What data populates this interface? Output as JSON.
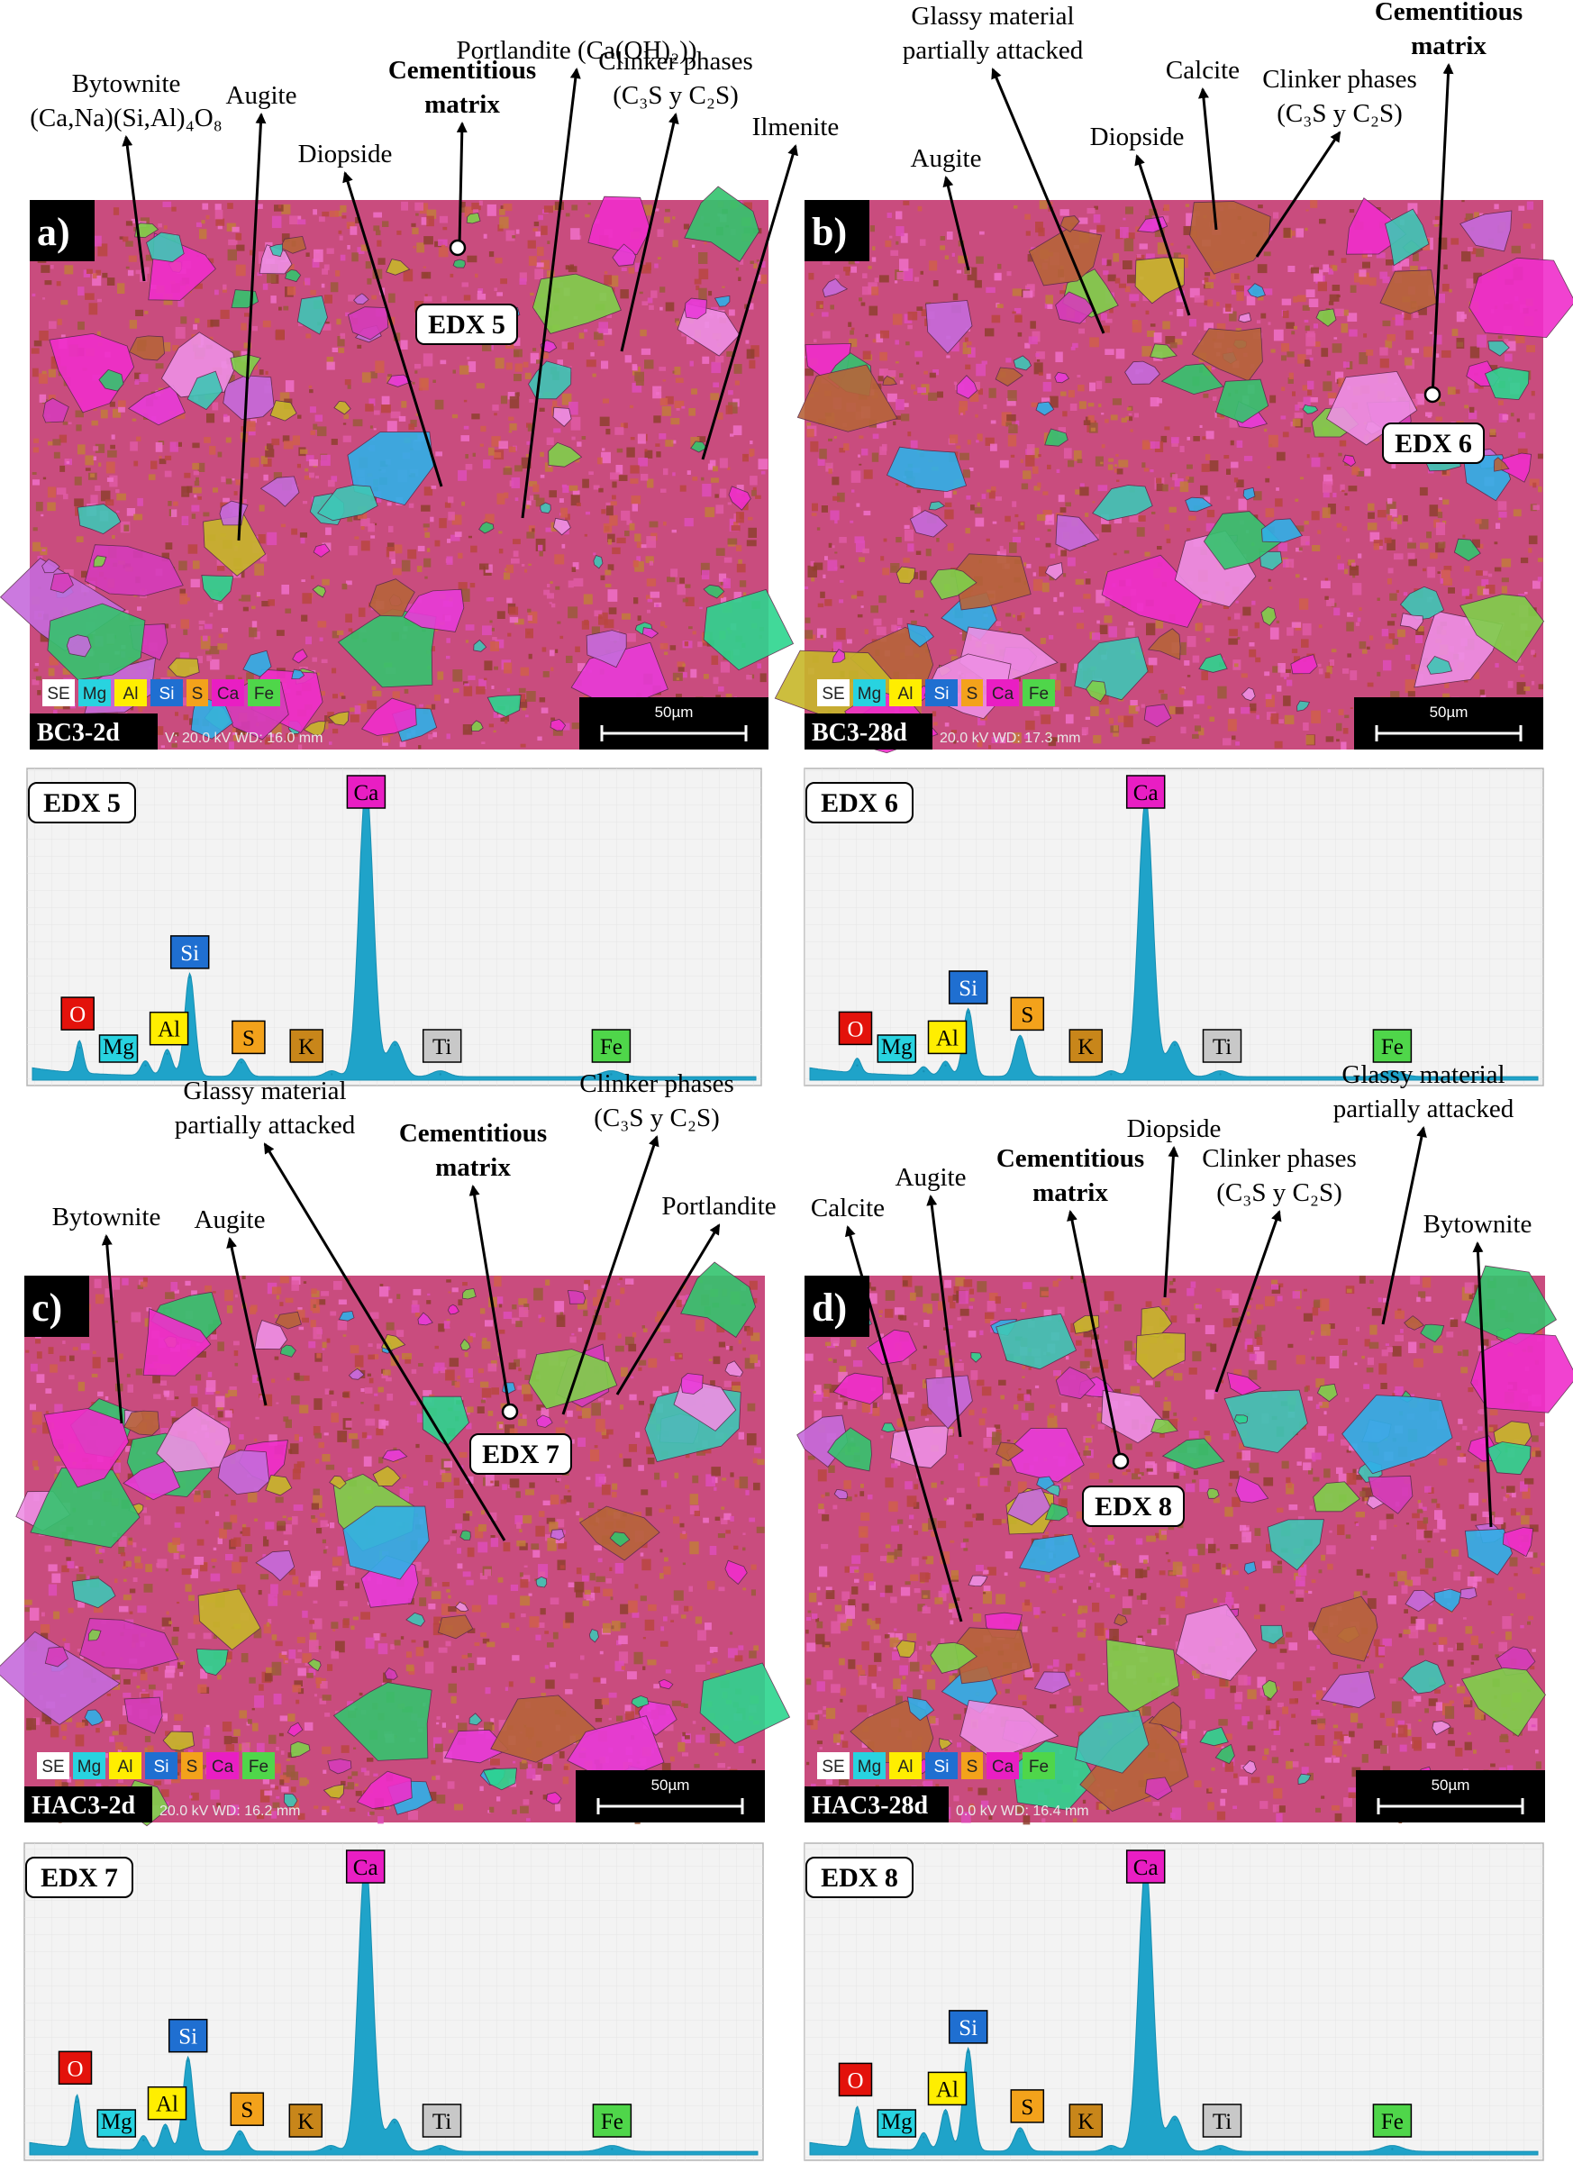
{
  "panels": [
    {
      "id": "a",
      "letter": "a)",
      "sample": "BC3-2d",
      "meta": "V: 20.0 kV  WD: 16.0 mm",
      "scale_label": "50µm",
      "edx_point": "EDX 5",
      "legend": [
        "SE",
        "Mg",
        "Al",
        "Si",
        "S",
        "Ca",
        "Fe"
      ],
      "annotations": [
        {
          "lines": [
            "Bytownite",
            "(Ca,Na)(Si,Al)₄O₈"
          ],
          "bold": false
        },
        {
          "lines": [
            "Augite"
          ],
          "bold": false
        },
        {
          "lines": [
            "Diopside"
          ],
          "bold": false
        },
        {
          "lines": [
            "Cementitious",
            "matrix"
          ],
          "bold": true
        },
        {
          "lines": [
            "Portlandite (Ca(OH)₂))"
          ],
          "bold": false
        },
        {
          "lines": [
            "Clinker phases",
            "(C₃S y C₂S)"
          ],
          "bold": false
        },
        {
          "lines": [
            "Ilmenite"
          ],
          "bold": false
        }
      ]
    },
    {
      "id": "b",
      "letter": "b)",
      "sample": "BC3-28d",
      "meta": "20.0 kV  WD: 17.3 mm",
      "scale_label": "50µm",
      "edx_point": "EDX 6",
      "legend": [
        "SE",
        "Mg",
        "Al",
        "Si",
        "S",
        "Ca",
        "Fe"
      ],
      "annotations": [
        {
          "lines": [
            "Augite"
          ],
          "bold": false
        },
        {
          "lines": [
            "Glassy material",
            "partially attacked"
          ],
          "bold": false
        },
        {
          "lines": [
            "Diopside"
          ],
          "bold": false
        },
        {
          "lines": [
            "Calcite"
          ],
          "bold": false
        },
        {
          "lines": [
            "Clinker phases",
            "(C₃S y C₂S)"
          ],
          "bold": false
        },
        {
          "lines": [
            "Cementitious",
            "matrix"
          ],
          "bold": true
        }
      ]
    },
    {
      "id": "c",
      "letter": "c)",
      "sample": "HAC3-2d",
      "meta": "20.0 kV  WD: 16.2 mm",
      "scale_label": "50µm",
      "edx_point": "EDX 7",
      "legend": [
        "SE",
        "Mg",
        "Al",
        "Si",
        "S",
        "Ca",
        "Fe"
      ],
      "annotations": [
        {
          "lines": [
            "Bytownite"
          ],
          "bold": false
        },
        {
          "lines": [
            "Augite"
          ],
          "bold": false
        },
        {
          "lines": [
            "Glassy material",
            "partially attacked"
          ],
          "bold": false
        },
        {
          "lines": [
            "Cementitious",
            "matrix"
          ],
          "bold": true
        },
        {
          "lines": [
            "Clinker phases",
            "(C₃S y C₂S)"
          ],
          "bold": false
        },
        {
          "lines": [
            "Portlandite"
          ],
          "bold": false
        }
      ]
    },
    {
      "id": "d",
      "letter": "d)",
      "sample": "HAC3-28d",
      "meta": "0.0 kV  WD: 16.4 mm",
      "scale_label": "50µm",
      "edx_point": "EDX 8",
      "legend": [
        "SE",
        "Mg",
        "Al",
        "Si",
        "S",
        "Ca",
        "Fe"
      ],
      "annotations": [
        {
          "lines": [
            "Calcite"
          ],
          "bold": false
        },
        {
          "lines": [
            "Augite"
          ],
          "bold": false
        },
        {
          "lines": [
            "Cementitious",
            "matrix"
          ],
          "bold": true
        },
        {
          "lines": [
            "Diopside"
          ],
          "bold": false
        },
        {
          "lines": [
            "Clinker phases",
            "(C₃S y C₂S)"
          ],
          "bold": false
        },
        {
          "lines": [
            "Glassy material",
            "partially attacked"
          ],
          "bold": false
        },
        {
          "lines": [
            "Bytownite"
          ],
          "bold": false
        }
      ]
    }
  ],
  "element_colors": {
    "SE": "#ffffff",
    "O": "#e3120b",
    "Mg": "#28d3e0",
    "Al": "#ffee00",
    "Si": "#1f6fd1",
    "S": "#f3a21b",
    "K": "#c8861a",
    "Ca": "#e91ec3",
    "Ti": "#c8c8c8",
    "Fe": "#4fd64a"
  },
  "spectra": [
    {
      "title": "EDX 5",
      "peaks": [
        {
          "element": "O",
          "energy_keV": 0.52,
          "height": 0.11
        },
        {
          "element": "Mg",
          "energy_keV": 1.25,
          "height": 0.05
        },
        {
          "element": "Al",
          "energy_keV": 1.49,
          "height": 0.09
        },
        {
          "element": "Si",
          "energy_keV": 1.74,
          "height": 0.35
        },
        {
          "element": "S",
          "energy_keV": 2.31,
          "height": 0.06
        },
        {
          "element": "K",
          "energy_keV": 3.31,
          "height": 0.02
        },
        {
          "element": "Ca",
          "energy_keV": 3.69,
          "height": 1.0
        },
        {
          "element": "Ca",
          "energy_keV": 4.01,
          "height": 0.12
        },
        {
          "element": "Ti",
          "energy_keV": 4.51,
          "height": 0.02
        },
        {
          "element": "Fe",
          "energy_keV": 6.4,
          "height": 0.02
        }
      ],
      "labels": [
        "O",
        "Mg",
        "Al",
        "Si",
        "S",
        "K",
        "Ca",
        "Ti",
        "Fe"
      ]
    },
    {
      "title": "EDX 6",
      "peaks": [
        {
          "element": "O",
          "energy_keV": 0.52,
          "height": 0.05
        },
        {
          "element": "Mg",
          "energy_keV": 1.25,
          "height": 0.03
        },
        {
          "element": "Al",
          "energy_keV": 1.49,
          "height": 0.05
        },
        {
          "element": "Si",
          "energy_keV": 1.74,
          "height": 0.23
        },
        {
          "element": "S",
          "energy_keV": 2.31,
          "height": 0.14
        },
        {
          "element": "K",
          "energy_keV": 3.31,
          "height": 0.02
        },
        {
          "element": "Ca",
          "energy_keV": 3.69,
          "height": 0.95
        },
        {
          "element": "Ca",
          "energy_keV": 4.01,
          "height": 0.12
        },
        {
          "element": "Ti",
          "energy_keV": 4.51,
          "height": 0.02
        },
        {
          "element": "Fe",
          "energy_keV": 6.4,
          "height": 0.02
        }
      ],
      "labels": [
        "O",
        "Mg",
        "Al",
        "Si",
        "S",
        "K",
        "Ca",
        "Ti",
        "Fe"
      ]
    },
    {
      "title": "EDX 7",
      "peaks": [
        {
          "element": "O",
          "energy_keV": 0.52,
          "height": 0.18
        },
        {
          "element": "Mg",
          "energy_keV": 1.25,
          "height": 0.05
        },
        {
          "element": "Al",
          "energy_keV": 1.49,
          "height": 0.09
        },
        {
          "element": "Si",
          "energy_keV": 1.74,
          "height": 0.32
        },
        {
          "element": "S",
          "energy_keV": 2.31,
          "height": 0.07
        },
        {
          "element": "K",
          "energy_keV": 3.31,
          "height": 0.02
        },
        {
          "element": "Ca",
          "energy_keV": 3.69,
          "height": 1.0
        },
        {
          "element": "Ca",
          "energy_keV": 4.01,
          "height": 0.11
        },
        {
          "element": "Ti",
          "energy_keV": 4.51,
          "height": 0.02
        },
        {
          "element": "Fe",
          "energy_keV": 6.4,
          "height": 0.02
        }
      ],
      "labels": [
        "O",
        "Mg",
        "Al",
        "Si",
        "S",
        "K",
        "Ca",
        "Ti",
        "Fe"
      ]
    },
    {
      "title": "EDX 8",
      "peaks": [
        {
          "element": "O",
          "energy_keV": 0.52,
          "height": 0.14
        },
        {
          "element": "Mg",
          "energy_keV": 1.25,
          "height": 0.06
        },
        {
          "element": "Al",
          "energy_keV": 1.49,
          "height": 0.14
        },
        {
          "element": "Si",
          "energy_keV": 1.74,
          "height": 0.35
        },
        {
          "element": "S",
          "energy_keV": 2.31,
          "height": 0.08
        },
        {
          "element": "K",
          "energy_keV": 3.31,
          "height": 0.02
        },
        {
          "element": "Ca",
          "energy_keV": 3.69,
          "height": 0.98
        },
        {
          "element": "Ca",
          "energy_keV": 4.01,
          "height": 0.12
        },
        {
          "element": "Ti",
          "energy_keV": 4.51,
          "height": 0.02
        },
        {
          "element": "Fe",
          "energy_keV": 6.4,
          "height": 0.02
        }
      ],
      "labels": [
        "O",
        "Mg",
        "Al",
        "Si",
        "S",
        "K",
        "Ca",
        "Ti",
        "Fe"
      ]
    }
  ]
}
